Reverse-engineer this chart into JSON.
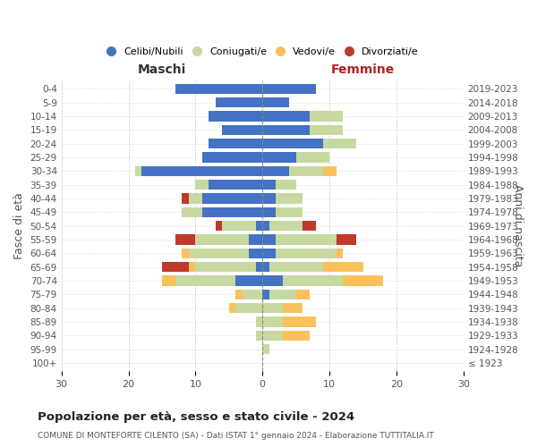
{
  "age_groups": [
    "100+",
    "95-99",
    "90-94",
    "85-89",
    "80-84",
    "75-79",
    "70-74",
    "65-69",
    "60-64",
    "55-59",
    "50-54",
    "45-49",
    "40-44",
    "35-39",
    "30-34",
    "25-29",
    "20-24",
    "15-19",
    "10-14",
    "5-9",
    "0-4"
  ],
  "year_labels": [
    "≤ 1923",
    "1924-1928",
    "1929-1933",
    "1934-1938",
    "1939-1943",
    "1944-1948",
    "1949-1953",
    "1954-1958",
    "1959-1963",
    "1964-1968",
    "1969-1973",
    "1974-1978",
    "1979-1983",
    "1984-1988",
    "1989-1993",
    "1994-1998",
    "1999-2003",
    "2004-2008",
    "2009-2013",
    "2014-2018",
    "2019-2023"
  ],
  "male": {
    "celibi": [
      0,
      0,
      0,
      0,
      0,
      0,
      4,
      1,
      2,
      2,
      1,
      9,
      9,
      8,
      18,
      9,
      8,
      6,
      8,
      7,
      13
    ],
    "coniugati": [
      0,
      0,
      1,
      1,
      4,
      3,
      9,
      9,
      9,
      8,
      5,
      3,
      2,
      2,
      1,
      0,
      0,
      0,
      0,
      0,
      0
    ],
    "vedovi": [
      0,
      0,
      0,
      0,
      1,
      1,
      2,
      1,
      1,
      0,
      0,
      0,
      0,
      0,
      0,
      0,
      0,
      0,
      0,
      0,
      0
    ],
    "divorziati": [
      0,
      0,
      0,
      0,
      0,
      0,
      0,
      4,
      0,
      3,
      1,
      0,
      1,
      0,
      0,
      0,
      0,
      0,
      0,
      0,
      0
    ]
  },
  "female": {
    "nubili": [
      0,
      0,
      0,
      0,
      0,
      1,
      3,
      1,
      2,
      2,
      1,
      2,
      2,
      2,
      4,
      5,
      9,
      7,
      7,
      4,
      8
    ],
    "coniugate": [
      0,
      1,
      3,
      3,
      3,
      4,
      9,
      8,
      9,
      9,
      5,
      4,
      4,
      3,
      5,
      5,
      5,
      5,
      5,
      0,
      0
    ],
    "vedove": [
      0,
      0,
      4,
      5,
      3,
      2,
      6,
      6,
      1,
      0,
      0,
      0,
      0,
      0,
      2,
      0,
      0,
      0,
      0,
      0,
      0
    ],
    "divorziate": [
      0,
      0,
      0,
      0,
      0,
      0,
      0,
      0,
      0,
      3,
      2,
      0,
      0,
      0,
      0,
      0,
      0,
      0,
      0,
      0,
      0
    ]
  },
  "colors": {
    "celibi": "#4472C4",
    "coniugati": "#C6D9A0",
    "vedovi": "#FAC15A",
    "divorziati": "#C0392B"
  },
  "xlim": 30,
  "title_main": "Popolazione per età, sesso e stato civile - 2024",
  "title_sub": "COMUNE DI MONTEFORTE CILENTO (SA) - Dati ISTAT 1° gennaio 2024 - Elaborazione TUTTITALIA.IT",
  "ylabel_left": "Fasce di età",
  "ylabel_right": "Anni di nascita",
  "legend_labels": [
    "Celibi/Nubili",
    "Coniugati/e",
    "Vedovi/e",
    "Divorziati/e"
  ],
  "background_color": "#ffffff",
  "grid_color": "#cccccc"
}
